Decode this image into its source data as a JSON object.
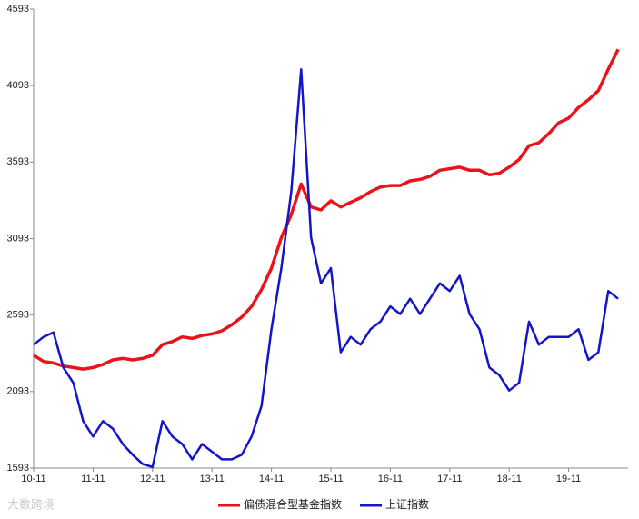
{
  "chart_data": {
    "type": "line",
    "categories": [
      "10-11",
      null,
      null,
      null,
      null,
      null,
      "11-11",
      null,
      null,
      null,
      null,
      null,
      "12-11",
      null,
      null,
      null,
      null,
      null,
      "13-11",
      null,
      null,
      null,
      null,
      null,
      "14-11",
      null,
      null,
      null,
      null,
      null,
      "15-11",
      null,
      null,
      null,
      null,
      null,
      "16-11",
      null,
      null,
      null,
      null,
      null,
      "17-11",
      null,
      null,
      null,
      null,
      null,
      "18-11",
      null,
      null,
      null,
      null,
      null,
      "19-11",
      null,
      null,
      null,
      null,
      null
    ],
    "series": [
      {
        "name": "偏债混合型基金指数",
        "color": "#e8141b",
        "values": [
          2330,
          2290,
          2280,
          2260,
          2250,
          2240,
          2250,
          2270,
          2300,
          2310,
          2300,
          2310,
          2330,
          2400,
          2420,
          2450,
          2440,
          2460,
          2470,
          2490,
          2530,
          2580,
          2650,
          2760,
          2900,
          3100,
          3250,
          3450,
          3300,
          3280,
          3340,
          3300,
          3330,
          3360,
          3400,
          3430,
          3440,
          3440,
          3470,
          3480,
          3500,
          3540,
          3550,
          3560,
          3540,
          3540,
          3510,
          3520,
          3560,
          3610,
          3700,
          3720,
          3780,
          3850,
          3880,
          3950,
          4000,
          4060,
          4200,
          4330
        ]
      },
      {
        "name": "上证指数",
        "color": "#1414c8",
        "values": [
          2400,
          2450,
          2480,
          2250,
          2150,
          1900,
          1800,
          1900,
          1850,
          1750,
          1680,
          1620,
          1600,
          1900,
          1800,
          1750,
          1650,
          1750,
          1700,
          1650,
          1650,
          1680,
          1800,
          2000,
          2500,
          2900,
          3400,
          4200,
          3100,
          2800,
          2900,
          2350,
          2450,
          2400,
          2500,
          2550,
          2650,
          2600,
          2700,
          2600,
          2700,
          2800,
          2750,
          2850,
          2600,
          2500,
          2250,
          2200,
          2100,
          2150,
          2550,
          2400,
          2450,
          2450,
          2450,
          2500,
          2300,
          2350,
          2750,
          2700
        ]
      }
    ],
    "ylim": [
      1593,
      4593
    ],
    "yticks": [
      1593,
      2093,
      2593,
      3093,
      3593,
      4093,
      4593
    ],
    "legend": "bottom",
    "watermark": "大数跨境"
  }
}
